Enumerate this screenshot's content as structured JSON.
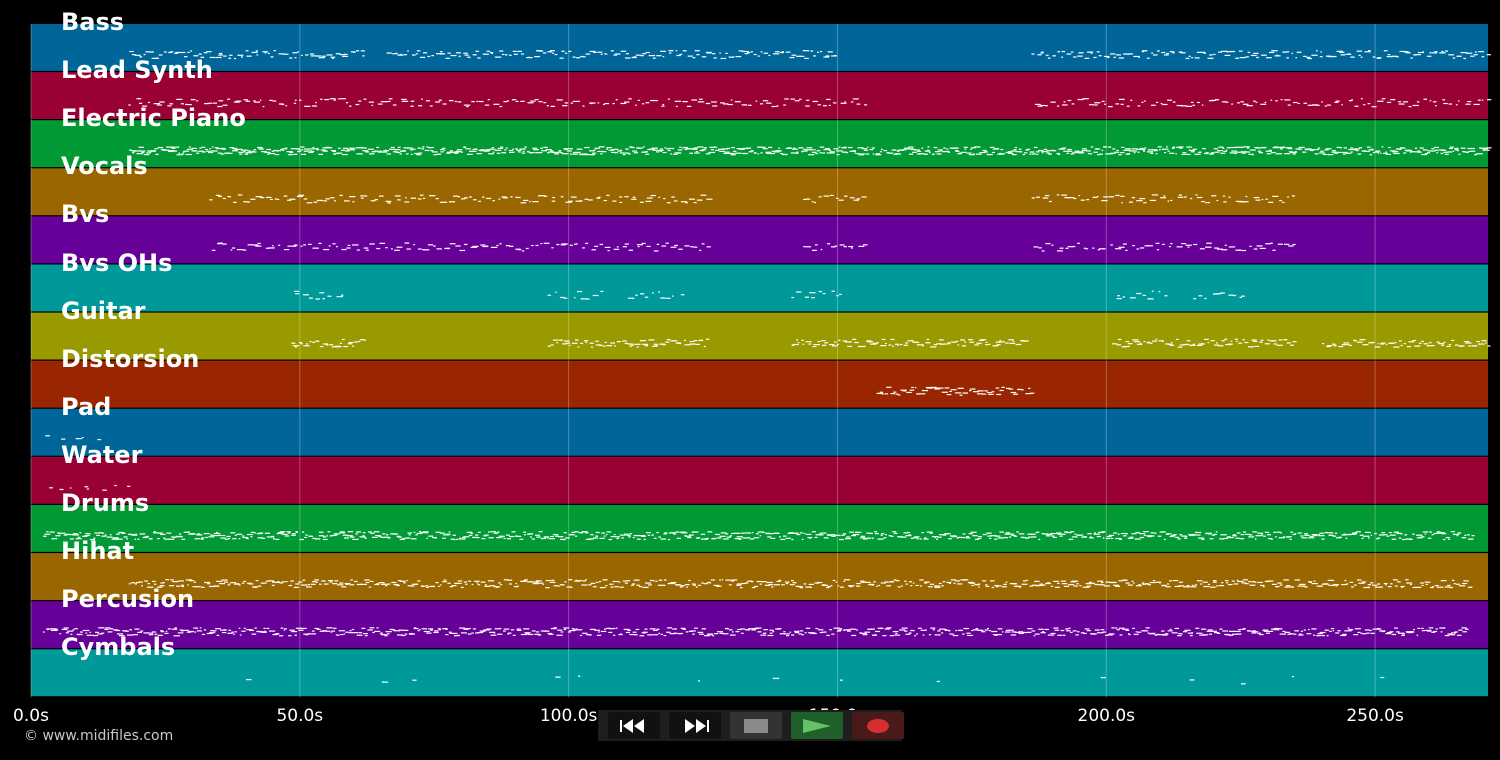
{
  "tracks": [
    {
      "name": "Bass",
      "color": "#006699"
    },
    {
      "name": "Lead Synth",
      "color": "#990033"
    },
    {
      "name": "Electric Piano",
      "color": "#009933"
    },
    {
      "name": "Vocals",
      "color": "#996600"
    },
    {
      "name": "Bvs",
      "color": "#660099"
    },
    {
      "name": "Bvs OHs",
      "color": "#009999"
    },
    {
      "name": "Guitar",
      "color": "#999900"
    },
    {
      "name": "Distorsion",
      "color": "#992600"
    },
    {
      "name": "Pad",
      "color": "#006699"
    },
    {
      "name": "Water",
      "color": "#990033"
    },
    {
      "name": "Drums",
      "color": "#009933"
    },
    {
      "name": "Hihat",
      "color": "#996600"
    },
    {
      "name": "Percusion",
      "color": "#660099"
    },
    {
      "name": "Cymbals",
      "color": "#009999"
    }
  ],
  "timeline": {
    "duration_s": 271,
    "ticks": [
      "0.0s",
      "50.0s",
      "100.0s",
      "150.0s",
      "200.0s",
      "250.0s"
    ]
  },
  "transport": {
    "rewind_icon": "rewind-icon",
    "fast_forward_icon": "fast-forward-icon",
    "stop_icon": "stop-icon",
    "play_icon": "play-icon",
    "record_icon": "record-icon"
  },
  "copyright": "© www.midifiles.com"
}
